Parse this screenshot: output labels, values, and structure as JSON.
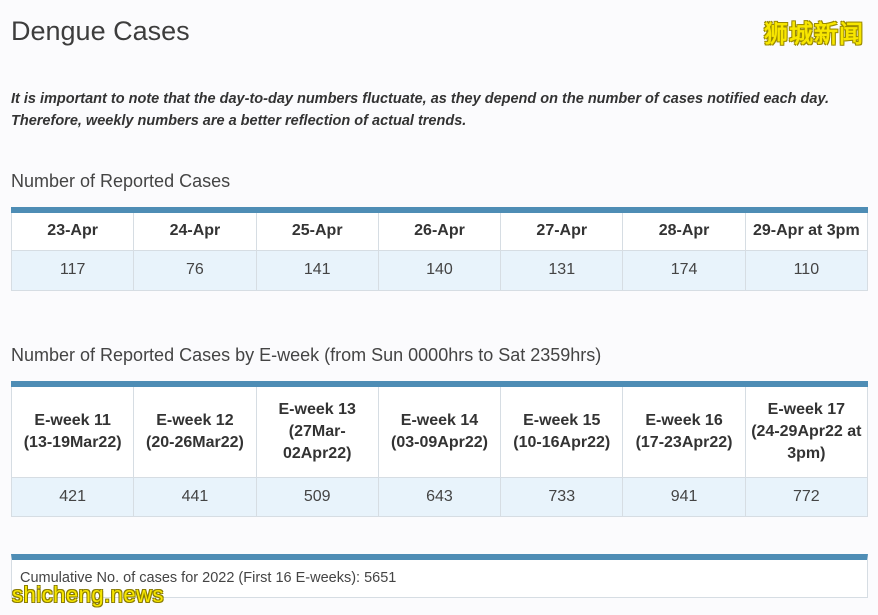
{
  "page": {
    "title": "Dengue Cases",
    "note_line1": "It is important to note that the day-to-day numbers fluctuate, as they depend on the number of cases notified each day.",
    "note_line2": "Therefore, weekly numbers are a better reflection of actual trends."
  },
  "watermarks": {
    "top_right": "狮城新闻",
    "bottom_left": "shicheng.news"
  },
  "daily_table": {
    "title": "Number of Reported Cases",
    "headers": [
      "23-Apr",
      "24-Apr",
      "25-Apr",
      "26-Apr",
      "27-Apr",
      "28-Apr",
      "29-Apr at 3pm"
    ],
    "values": [
      "117",
      "76",
      "141",
      "140",
      "131",
      "174",
      "110"
    ]
  },
  "eweek_table": {
    "title": "Number of Reported Cases by E-week (from Sun 0000hrs to Sat 2359hrs)",
    "headers": [
      {
        "week": "E-week 11",
        "range": "(13-19Mar22)"
      },
      {
        "week": "E-week 12",
        "range": "(20-26Mar22)"
      },
      {
        "week": "E-week 13",
        "range": "(27Mar-02Apr22)"
      },
      {
        "week": "E-week 14",
        "range": "(03-09Apr22)"
      },
      {
        "week": "E-week 15",
        "range": "(10-16Apr22)"
      },
      {
        "week": "E-week 16",
        "range": "(17-23Apr22)"
      },
      {
        "week": "E-week 17",
        "range": "(24-29Apr22 at 3pm)"
      }
    ],
    "values": [
      "421",
      "441",
      "509",
      "643",
      "733",
      "941",
      "772"
    ]
  },
  "cumulative": {
    "text": "Cumulative No. of cases for 2022 (First 16 E-weeks): 5651"
  },
  "colors": {
    "accent": "#4e8db5",
    "value_row_bg": "#e8f3fb",
    "watermark": "#f7e600"
  }
}
